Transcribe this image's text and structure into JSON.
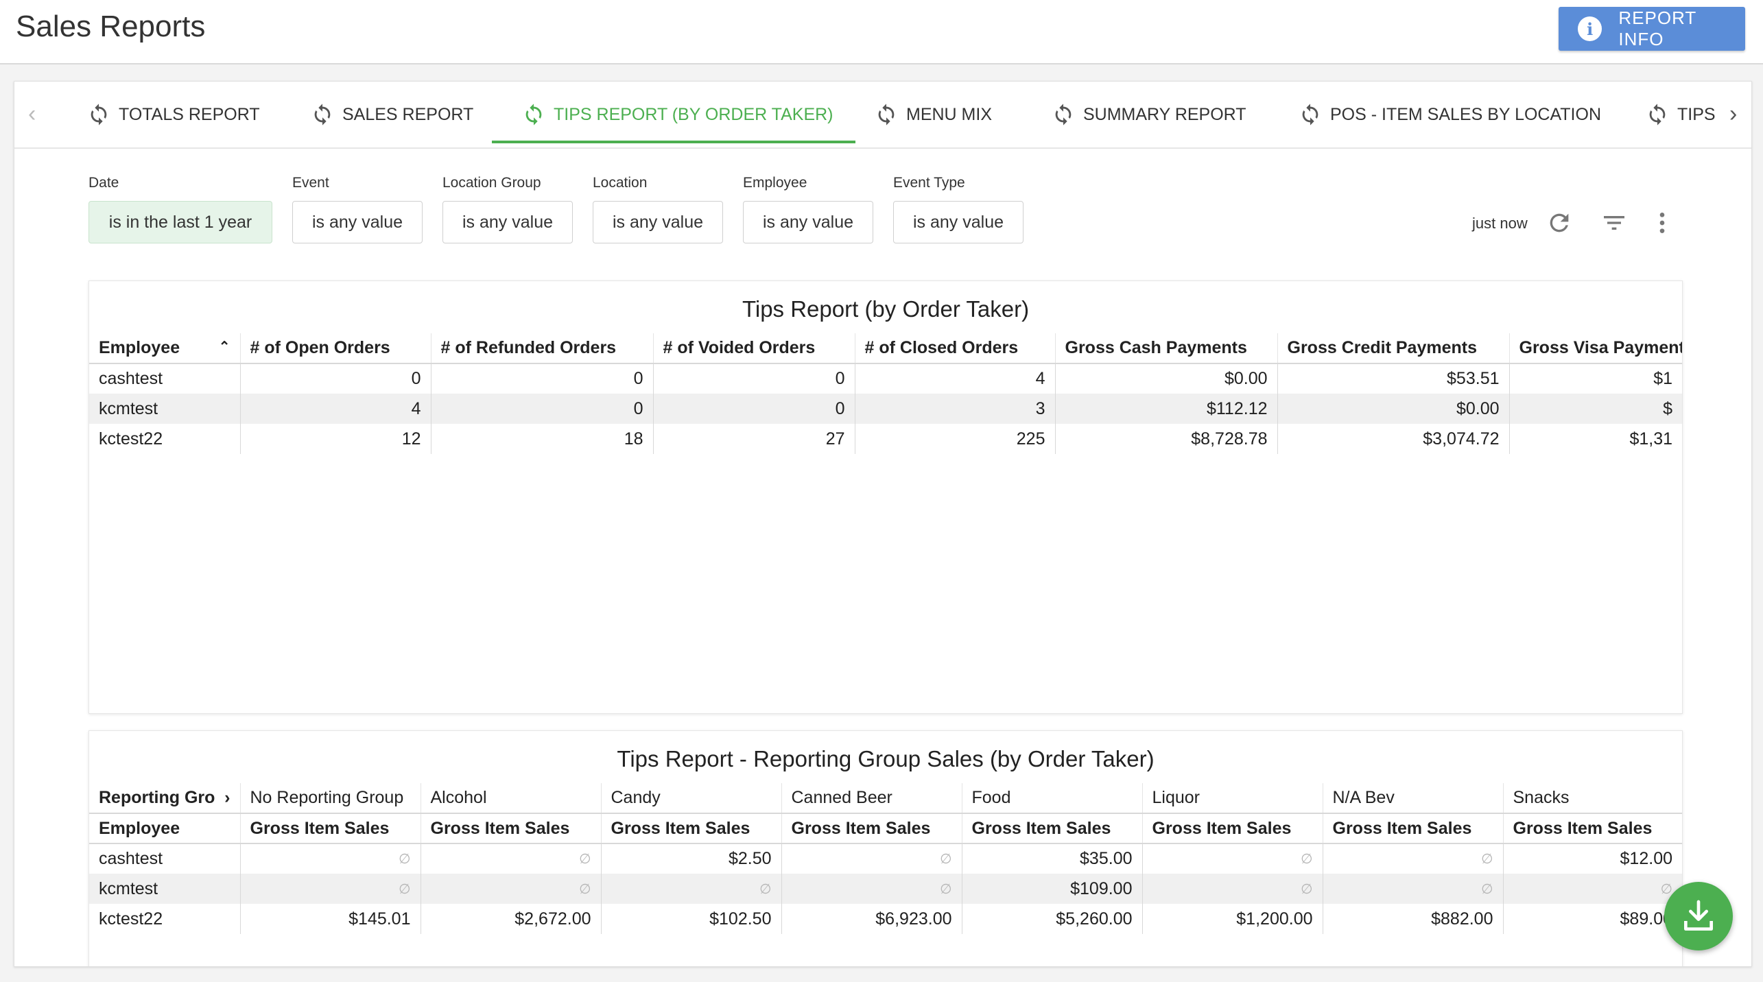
{
  "header": {
    "title": "Sales Reports",
    "report_info_label": "REPORT INFO"
  },
  "tabs": [
    {
      "label": "TOTALS REPORT"
    },
    {
      "label": "SALES REPORT"
    },
    {
      "label": "TIPS REPORT (BY ORDER TAKER)"
    },
    {
      "label": "MENU MIX"
    },
    {
      "label": "SUMMARY REPORT"
    },
    {
      "label": "POS - ITEM SALES BY LOCATION"
    },
    {
      "label": "TIPS"
    }
  ],
  "filters": [
    {
      "label": "Date",
      "value": "is in the last 1 year"
    },
    {
      "label": "Event",
      "value": "is any value"
    },
    {
      "label": "Location Group",
      "value": "is any value"
    },
    {
      "label": "Location",
      "value": "is any value"
    },
    {
      "label": "Employee",
      "value": "is any value"
    },
    {
      "label": "Event Type",
      "value": "is any value"
    }
  ],
  "toolbar": {
    "updated": "just now"
  },
  "tips_table": {
    "title": "Tips Report (by Order Taker)",
    "columns": [
      "Employee",
      "# of Open Orders",
      "# of Refunded Orders",
      "# of Voided Orders",
      "# of Closed Orders",
      "Gross Cash Payments",
      "Gross Credit Payments",
      "Gross Visa Payments"
    ],
    "rows": [
      [
        "cashtest",
        "0",
        "0",
        "0",
        "4",
        "$0.00",
        "$53.51",
        "$1"
      ],
      [
        "kcmtest",
        "4",
        "0",
        "0",
        "3",
        "$112.12",
        "$0.00",
        "$"
      ],
      [
        "kctest22",
        "12",
        "18",
        "27",
        "225",
        "$8,728.78",
        "$3,074.72",
        "$1,31"
      ]
    ]
  },
  "group_table": {
    "title": "Tips Report - Reporting Group Sales (by Order Taker)",
    "group_header": "Reporting Gro",
    "groups": [
      "No Reporting Group",
      "Alcohol",
      "Candy",
      "Canned Beer",
      "Food",
      "Liquor",
      "N/A Bev",
      "Snacks"
    ],
    "row_header": "Employee",
    "metric": "Gross Item Sales",
    "empty_symbol": "∅",
    "rows": [
      [
        "cashtest",
        "∅",
        "∅",
        "$2.50",
        "∅",
        "$35.00",
        "∅",
        "∅",
        "$12.00"
      ],
      [
        "kcmtest",
        "∅",
        "∅",
        "∅",
        "∅",
        "$109.00",
        "∅",
        "∅",
        "∅"
      ],
      [
        "kctest22",
        "$145.01",
        "$2,672.00",
        "$102.50",
        "$6,923.00",
        "$5,260.00",
        "$1,200.00",
        "$882.00",
        "$89.00"
      ]
    ]
  },
  "icons": {
    "tab_icon": "refresh-icon",
    "info": "info-icon",
    "refresh": "refresh-icon",
    "filter": "filter-icon",
    "more": "more-vert-icon",
    "download": "download-icon"
  },
  "colors": {
    "accent_green": "#4caf50",
    "button_blue": "#5b8dd8"
  }
}
